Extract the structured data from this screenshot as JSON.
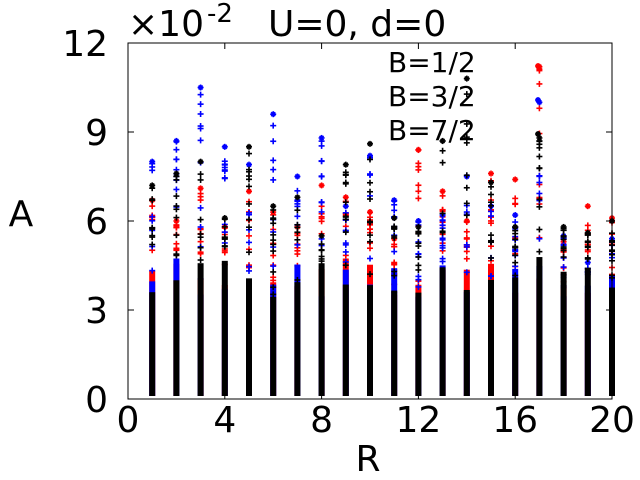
{
  "chart_data": {
    "type": "scatter",
    "title": "U=0, d=0",
    "y_multiplier": {
      "base": "×10",
      "exponent": "-2"
    },
    "xlabel": "R",
    "ylabel": "A",
    "xlim": [
      0,
      20
    ],
    "ylim": [
      0,
      12
    ],
    "xticks": [
      "0",
      "4",
      "8",
      "12",
      "16",
      "20"
    ],
    "yticks": [
      "0",
      "3",
      "6",
      "9",
      "12"
    ],
    "grid": false,
    "legend_position": "top-right",
    "series": [
      {
        "name": "B=1/2",
        "color": "#ff0000",
        "x": [
          1,
          2,
          3,
          4,
          5,
          6,
          7,
          8,
          9,
          10,
          11,
          12,
          13,
          14,
          15,
          16,
          17,
          18,
          19,
          20
        ],
        "max": [
          6.7,
          6.0,
          7.1,
          5.8,
          7.0,
          6.3,
          5.8,
          7.2,
          6.8,
          6.3,
          5.4,
          8.4,
          7.0,
          6.0,
          7.6,
          7.4,
          11.2,
          5.3,
          6.5,
          6.1
        ]
      },
      {
        "name": "B=3/2",
        "color": "#0000ff",
        "x": [
          1,
          2,
          3,
          4,
          5,
          6,
          7,
          8,
          9,
          10,
          11,
          12,
          13,
          14,
          15,
          16,
          17,
          18,
          19,
          20
        ],
        "max": [
          8.0,
          8.7,
          10.5,
          8.5,
          7.9,
          9.6,
          7.5,
          8.8,
          6.5,
          8.2,
          6.7,
          6.0,
          6.2,
          7.5,
          6.5,
          6.2,
          10.0,
          5.5,
          4.6,
          5.4
        ]
      },
      {
        "name": "B=7/2",
        "color": "#000000",
        "x": [
          1,
          2,
          3,
          4,
          5,
          6,
          7,
          8,
          9,
          10,
          11,
          12,
          13,
          14,
          15,
          16,
          17,
          18,
          19,
          20
        ],
        "max": [
          7.2,
          7.6,
          8.0,
          6.1,
          8.5,
          6.5,
          6.8,
          5.5,
          7.9,
          8.6,
          6.1,
          5.8,
          8.7,
          10.8,
          7.3,
          5.8,
          8.8,
          5.8,
          5.6,
          6.0
        ]
      }
    ]
  }
}
